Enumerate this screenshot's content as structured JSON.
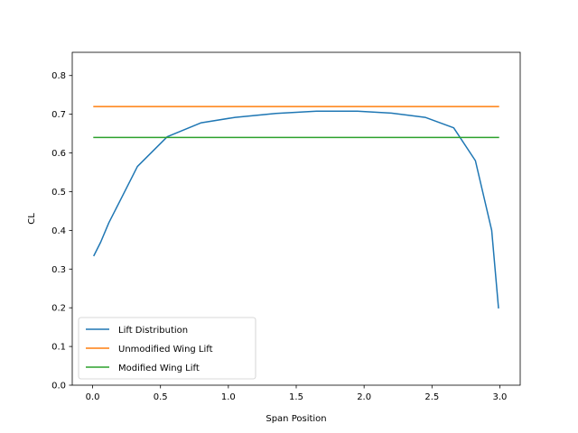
{
  "chart_data": {
    "type": "line",
    "title": "",
    "xlabel": "Span Position",
    "ylabel": "CL",
    "xlim": [
      -0.15,
      3.15
    ],
    "ylim": [
      0.0,
      0.86
    ],
    "x_ticks": [
      0.0,
      0.5,
      1.0,
      1.5,
      2.0,
      2.5,
      3.0
    ],
    "x_tick_labels": [
      "0.0",
      "0.5",
      "1.0",
      "1.5",
      "2.0",
      "2.5",
      "3.0"
    ],
    "y_ticks": [
      0.0,
      0.1,
      0.2,
      0.3,
      0.4,
      0.5,
      0.6,
      0.7,
      0.8
    ],
    "y_tick_labels": [
      "0.0",
      "0.1",
      "0.2",
      "0.3",
      "0.4",
      "0.5",
      "0.6",
      "0.7",
      "0.8"
    ],
    "grid": false,
    "legend_position": "lower-left",
    "series": [
      {
        "name": "Lift Distribution",
        "color": "#1f77b4",
        "x": [
          0.01,
          0.06,
          0.12,
          0.2,
          0.33,
          0.55,
          0.8,
          1.05,
          1.35,
          1.65,
          1.95,
          2.2,
          2.45,
          2.66,
          2.82,
          2.94,
          2.99
        ],
        "y": [
          0.335,
          0.37,
          0.42,
          0.475,
          0.565,
          0.642,
          0.678,
          0.692,
          0.702,
          0.708,
          0.708,
          0.703,
          0.692,
          0.665,
          0.58,
          0.4,
          0.2
        ]
      },
      {
        "name": "Unmodified Wing Lift",
        "color": "#ff7f0e",
        "x": [
          0.01,
          2.99
        ],
        "y": [
          0.72,
          0.72
        ]
      },
      {
        "name": "Modified Wing Lift",
        "color": "#2ca02c",
        "x": [
          0.01,
          2.99
        ],
        "y": [
          0.64,
          0.64
        ]
      }
    ]
  }
}
